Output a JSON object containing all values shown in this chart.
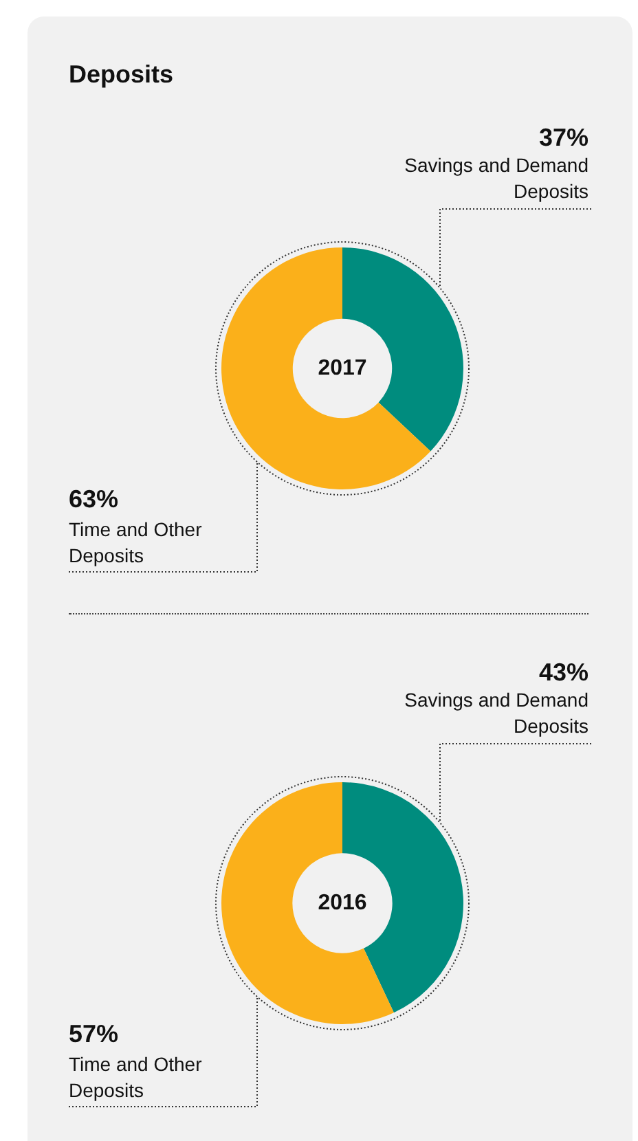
{
  "chart_data": [
    {
      "type": "donut",
      "title": "Deposits",
      "categories": [
        "Savings and Demand Deposits",
        "Time and Other Deposits"
      ],
      "values": [
        37,
        63
      ],
      "colors": [
        "#008c7e",
        "#fbb01a"
      ],
      "value_labels": [
        "37%",
        "63%"
      ],
      "annotations": [
        "2017"
      ]
    },
    {
      "type": "donut",
      "categories": [
        "Savings and Demand Deposits",
        "Time and Other Deposits"
      ],
      "values": [
        43,
        57
      ],
      "colors": [
        "#008c7e",
        "#fbb01a"
      ],
      "value_labels": [
        "43%",
        "57%"
      ],
      "annotations": [
        "2016"
      ]
    }
  ]
}
